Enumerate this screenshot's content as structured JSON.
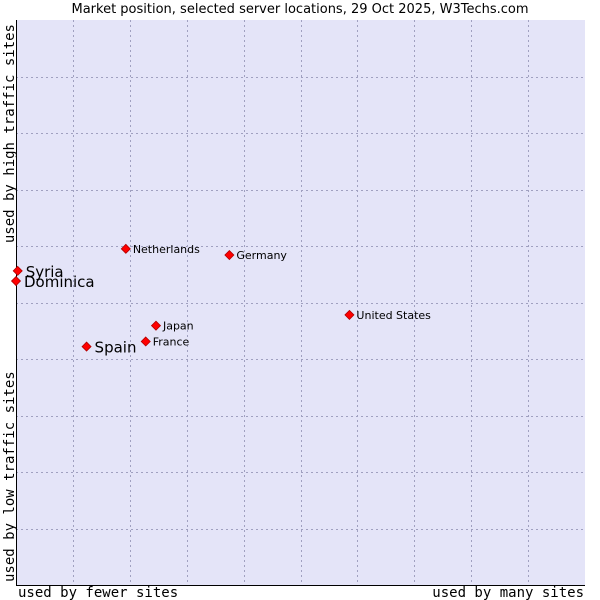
{
  "chart": {
    "title": "Market position, selected server locations, 29 Oct 2025, W3Techs.com"
  },
  "colors": {
    "plot_background": "#e4e4f8",
    "grid": "#a0a0c0",
    "marker": "#ff0000",
    "marker_outline": "#b00000",
    "axis": "#000000"
  },
  "chart_data": {
    "type": "scatter",
    "title": "Market position, selected server locations, 29 Oct 2025, W3Techs.com",
    "xlabel_low": "used by fewer sites",
    "xlabel_high": "used by many sites",
    "ylabel_low": "used by low traffic sites",
    "ylabel_high": "used by high traffic sites",
    "xlim": [
      0,
      100
    ],
    "ylim": [
      0,
      100
    ],
    "grid": true,
    "x_gridlines": [
      10,
      20,
      30,
      40,
      50,
      60,
      70,
      80,
      90
    ],
    "y_gridlines": [
      10,
      20,
      30,
      40,
      50,
      60,
      70,
      80,
      90
    ],
    "points": [
      {
        "name": "Syria",
        "x": 0.3,
        "y": 55.6,
        "highlight": true
      },
      {
        "name": "Dominica",
        "x": 0.0,
        "y": 53.8,
        "highlight": true
      },
      {
        "name": "Spain",
        "x": 12.4,
        "y": 42.2,
        "highlight": true
      },
      {
        "name": "Netherlands",
        "x": 19.3,
        "y": 59.5,
        "highlight": false
      },
      {
        "name": "Germany",
        "x": 37.5,
        "y": 58.4,
        "highlight": false
      },
      {
        "name": "Japan",
        "x": 24.6,
        "y": 45.9,
        "highlight": false
      },
      {
        "name": "France",
        "x": 22.8,
        "y": 43.1,
        "highlight": false
      },
      {
        "name": "United States",
        "x": 58.6,
        "y": 47.8,
        "highlight": false
      }
    ]
  }
}
